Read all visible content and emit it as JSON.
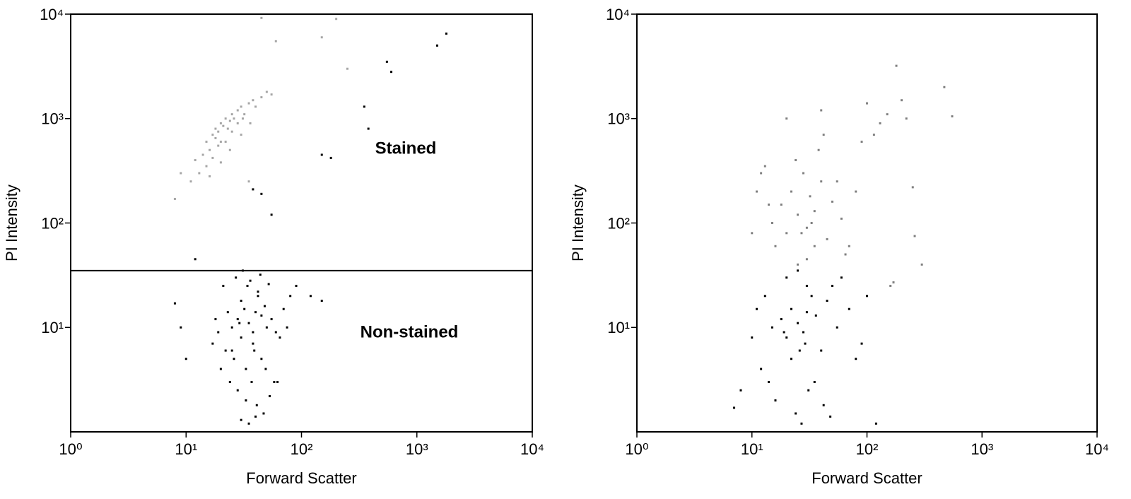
{
  "chart_data": [
    {
      "type": "scatter",
      "xlabel": "Forward Scatter",
      "ylabel": "PI Intensity",
      "log_x": true,
      "log_y": true,
      "xlim": [
        1,
        10000
      ],
      "ylim": [
        1,
        10000
      ],
      "xticks": [
        {
          "value": 1,
          "label": "10⁰"
        },
        {
          "value": 10,
          "label": "10¹"
        },
        {
          "value": 100,
          "label": "10²"
        },
        {
          "value": 1000,
          "label": "10³"
        },
        {
          "value": 10000,
          "label": "10⁴"
        }
      ],
      "yticks": [
        {
          "value": 10,
          "label": "10¹"
        },
        {
          "value": 100,
          "label": "10²"
        },
        {
          "value": 1000,
          "label": "10³"
        },
        {
          "value": 10000,
          "label": "10⁴"
        }
      ],
      "gate": 35,
      "annotations": [
        {
          "text": "Stained",
          "color": "#8c8c8c"
        },
        {
          "text": "Non-stained",
          "color": "#000000"
        }
      ],
      "series": [
        {
          "color": "#a6a6a6",
          "x": [
            12,
            14,
            15,
            16,
            17,
            18,
            18,
            19,
            20,
            20,
            21,
            22,
            23,
            24,
            25,
            26,
            28,
            30,
            32,
            35,
            38,
            40,
            45,
            50,
            55,
            13,
            15,
            17,
            19,
            22,
            25,
            28,
            31,
            16,
            20,
            24,
            30,
            36,
            11,
            9,
            45,
            60,
            150,
            200,
            250,
            35,
            8
          ],
          "values": [
            400,
            450,
            600,
            500,
            700,
            650,
            800,
            750,
            900,
            600,
            850,
            1000,
            800,
            950,
            1100,
            1000,
            1200,
            1300,
            1100,
            1400,
            1500,
            1300,
            1600,
            1800,
            1700,
            300,
            350,
            420,
            550,
            600,
            750,
            900,
            1000,
            280,
            380,
            500,
            700,
            900,
            250,
            300,
            9200,
            5500,
            6000,
            9000,
            3000,
            250,
            170
          ]
        },
        {
          "color": "#000000",
          "x": [
            25,
            28,
            30,
            32,
            35,
            38,
            40,
            42,
            45,
            50,
            22,
            26,
            30,
            34,
            38,
            42,
            48,
            55,
            60,
            20,
            24,
            28,
            33,
            37,
            41,
            47,
            53,
            65,
            70,
            80,
            18,
            21,
            27,
            31,
            36,
            44,
            52,
            30,
            35,
            40,
            25,
            33,
            45,
            58,
            75,
            90,
            120,
            150,
            17,
            19,
            23,
            29,
            39,
            49,
            62,
            8,
            9,
            10,
            600,
            550,
            1800,
            1500,
            350,
            380,
            150,
            180,
            38,
            45,
            55,
            12
          ],
          "values": [
            10,
            12,
            8,
            15,
            11,
            9,
            14,
            20,
            13,
            10,
            6,
            5,
            18,
            25,
            7,
            22,
            16,
            12,
            9,
            4,
            3,
            2.5,
            2,
            3,
            1.8,
            1.5,
            2.2,
            8,
            15,
            20,
            12,
            25,
            30,
            35,
            28,
            32,
            26,
            1.3,
            1.2,
            1.4,
            6,
            4,
            5,
            3,
            10,
            25,
            20,
            18,
            7,
            9,
            14,
            11,
            6,
            4,
            3,
            17,
            10,
            5,
            2800,
            3500,
            6500,
            5000,
            1300,
            800,
            450,
            420,
            210,
            190,
            120,
            45
          ]
        }
      ]
    },
    {
      "type": "scatter",
      "xlabel": "Forward Scatter",
      "ylabel": "PI Intensity",
      "log_x": true,
      "log_y": true,
      "xlim": [
        1,
        10000
      ],
      "ylim": [
        1,
        10000
      ],
      "xticks": [
        {
          "value": 1,
          "label": "10⁰"
        },
        {
          "value": 10,
          "label": "10¹"
        },
        {
          "value": 100,
          "label": "10²"
        },
        {
          "value": 1000,
          "label": "10³"
        },
        {
          "value": 10000,
          "label": "10⁴"
        }
      ],
      "yticks": [
        {
          "value": 10,
          "label": "10¹"
        },
        {
          "value": 100,
          "label": "10²"
        },
        {
          "value": 1000,
          "label": "10³"
        },
        {
          "value": 10000,
          "label": "10⁴"
        }
      ],
      "series": [
        {
          "color": "#808080",
          "x": [
            15,
            18,
            20,
            22,
            25,
            28,
            30,
            32,
            35,
            40,
            45,
            50,
            60,
            70,
            80,
            12,
            14,
            16,
            24,
            27,
            33,
            38,
            42,
            55,
            65,
            20,
            25,
            30,
            35,
            40,
            10,
            11,
            13,
            90,
            100,
            150,
            180,
            200,
            220,
            260,
            300,
            470,
            550,
            160,
            170,
            250,
            130,
            115
          ],
          "values": [
            100,
            150,
            80,
            200,
            120,
            300,
            90,
            180,
            130,
            250,
            70,
            160,
            110,
            60,
            200,
            300,
            150,
            60,
            400,
            80,
            100,
            500,
            700,
            250,
            50,
            1000,
            40,
            45,
            60,
            1200,
            80,
            200,
            350,
            600,
            1400,
            1100,
            3200,
            1500,
            1000,
            75,
            40,
            2000,
            1050,
            25,
            27,
            220,
            900,
            700
          ]
        },
        {
          "color": "#000000",
          "x": [
            15,
            18,
            20,
            22,
            25,
            28,
            30,
            33,
            36,
            40,
            45,
            50,
            55,
            60,
            70,
            80,
            90,
            100,
            12,
            14,
            16,
            24,
            27,
            31,
            35,
            42,
            48,
            20,
            25,
            30,
            10,
            11,
            13,
            8,
            7,
            120,
            22,
            26,
            29,
            19
          ],
          "values": [
            10,
            12,
            8,
            15,
            11,
            9,
            14,
            20,
            13,
            6,
            18,
            25,
            10,
            30,
            15,
            5,
            7,
            20,
            4,
            3,
            2,
            1.5,
            1.2,
            2.5,
            3,
            1.8,
            1.4,
            30,
            35,
            25,
            8,
            15,
            20,
            2.5,
            1.7,
            1.2,
            5,
            6,
            7,
            9
          ]
        }
      ]
    }
  ]
}
